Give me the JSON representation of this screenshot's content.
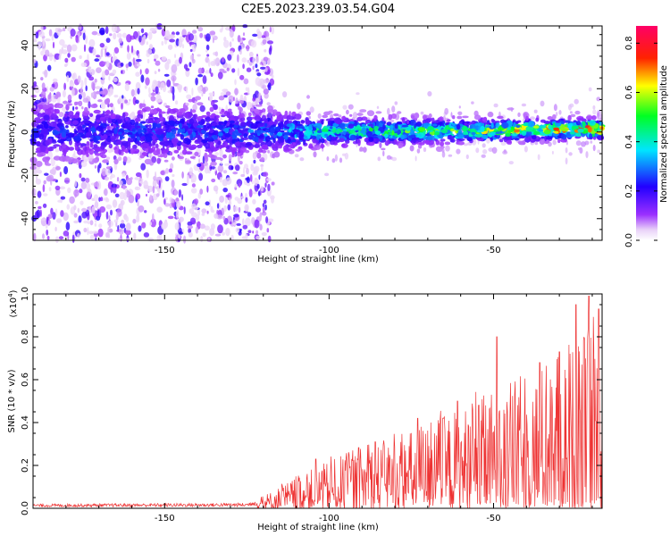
{
  "colors": {
    "snr_line": "#ee3333",
    "axis": "#000000",
    "background": "#ffffff"
  },
  "colormap": "rainbow (white-purple-blue-cyan-green-yellow-red-magenta)",
  "chart_data": [
    {
      "type": "heatmap",
      "title": "C2E5.2023.239.03.54.G04",
      "xlabel": "Height of straight line (km)",
      "ylabel": "Frequency (Hz)",
      "xlim": [
        -190,
        -17
      ],
      "ylim": [
        -50,
        49
      ],
      "x_ticks": [
        -150,
        -100,
        -50
      ],
      "y_ticks": [
        -40,
        -20,
        0,
        20,
        40
      ],
      "colorbar": {
        "label": "Normalized spectral amplitude",
        "range": [
          0.0,
          0.87
        ],
        "ticks": [
          "0.0",
          "0.2",
          "0.4",
          "0.6",
          "0.8"
        ]
      },
      "description_values": {
        "band_center_hz": [
          {
            "x": -190,
            "y": 0
          },
          {
            "x": -120,
            "y": 0
          },
          {
            "x": -60,
            "y": 0.5
          },
          {
            "x": -17,
            "y": 1.5
          }
        ],
        "band_halfwidth_hz": [
          {
            "x": -190,
            "y": 12
          },
          {
            "x": -125,
            "y": 10
          },
          {
            "x": -100,
            "y": 6
          },
          {
            "x": -17,
            "y": 4
          }
        ],
        "band_peak_amplitude": [
          {
            "x": -190,
            "y": 0.2
          },
          {
            "x": -125,
            "y": 0.25
          },
          {
            "x": -95,
            "y": 0.45
          },
          {
            "x": -50,
            "y": 0.6
          },
          {
            "x": -17,
            "y": 0.85
          }
        ],
        "scatter_noise_extent_x": [
          -190,
          -123
        ]
      }
    },
    {
      "type": "line",
      "xlabel": "Height of straight line (km)",
      "ylabel": "SNR (10 * v/v)",
      "y_scale_label": "(x10^4)",
      "y_scale_base": "x10",
      "y_scale_exp": "4",
      "xlim": [
        -190,
        -17
      ],
      "ylim": [
        0,
        1.0
      ],
      "x_ticks": [
        -150,
        -100,
        -50
      ],
      "y_ticks": [
        "0.0",
        "0.2",
        "0.4",
        "0.6",
        "0.8",
        "1.0"
      ],
      "series": [
        {
          "envelope_points": [
            {
              "x": -190,
              "y": 0.02
            },
            {
              "x": -125,
              "y": 0.025
            },
            {
              "x": -118,
              "y": 0.07
            },
            {
              "x": -108,
              "y": 0.15
            },
            {
              "x": -100,
              "y": 0.2
            },
            {
              "x": -90,
              "y": 0.27
            },
            {
              "x": -80,
              "y": 0.3
            },
            {
              "x": -70,
              "y": 0.37
            },
            {
              "x": -60,
              "y": 0.43
            },
            {
              "x": -50,
              "y": 0.5
            },
            {
              "x": -40,
              "y": 0.58
            },
            {
              "x": -30,
              "y": 0.65
            },
            {
              "x": -20,
              "y": 0.78
            },
            {
              "x": -17,
              "y": 0.8
            }
          ],
          "peaks": [
            {
              "x": -104,
              "y": 0.23
            },
            {
              "x": -86,
              "y": 0.31
            },
            {
              "x": -73,
              "y": 0.42
            },
            {
              "x": -61,
              "y": 0.5
            },
            {
              "x": -49,
              "y": 0.8
            },
            {
              "x": -36,
              "y": 0.68
            },
            {
              "x": -30,
              "y": 0.73
            },
            {
              "x": -25,
              "y": 0.95
            },
            {
              "x": -21,
              "y": 0.99
            },
            {
              "x": -18,
              "y": 0.93
            }
          ]
        }
      ]
    }
  ]
}
